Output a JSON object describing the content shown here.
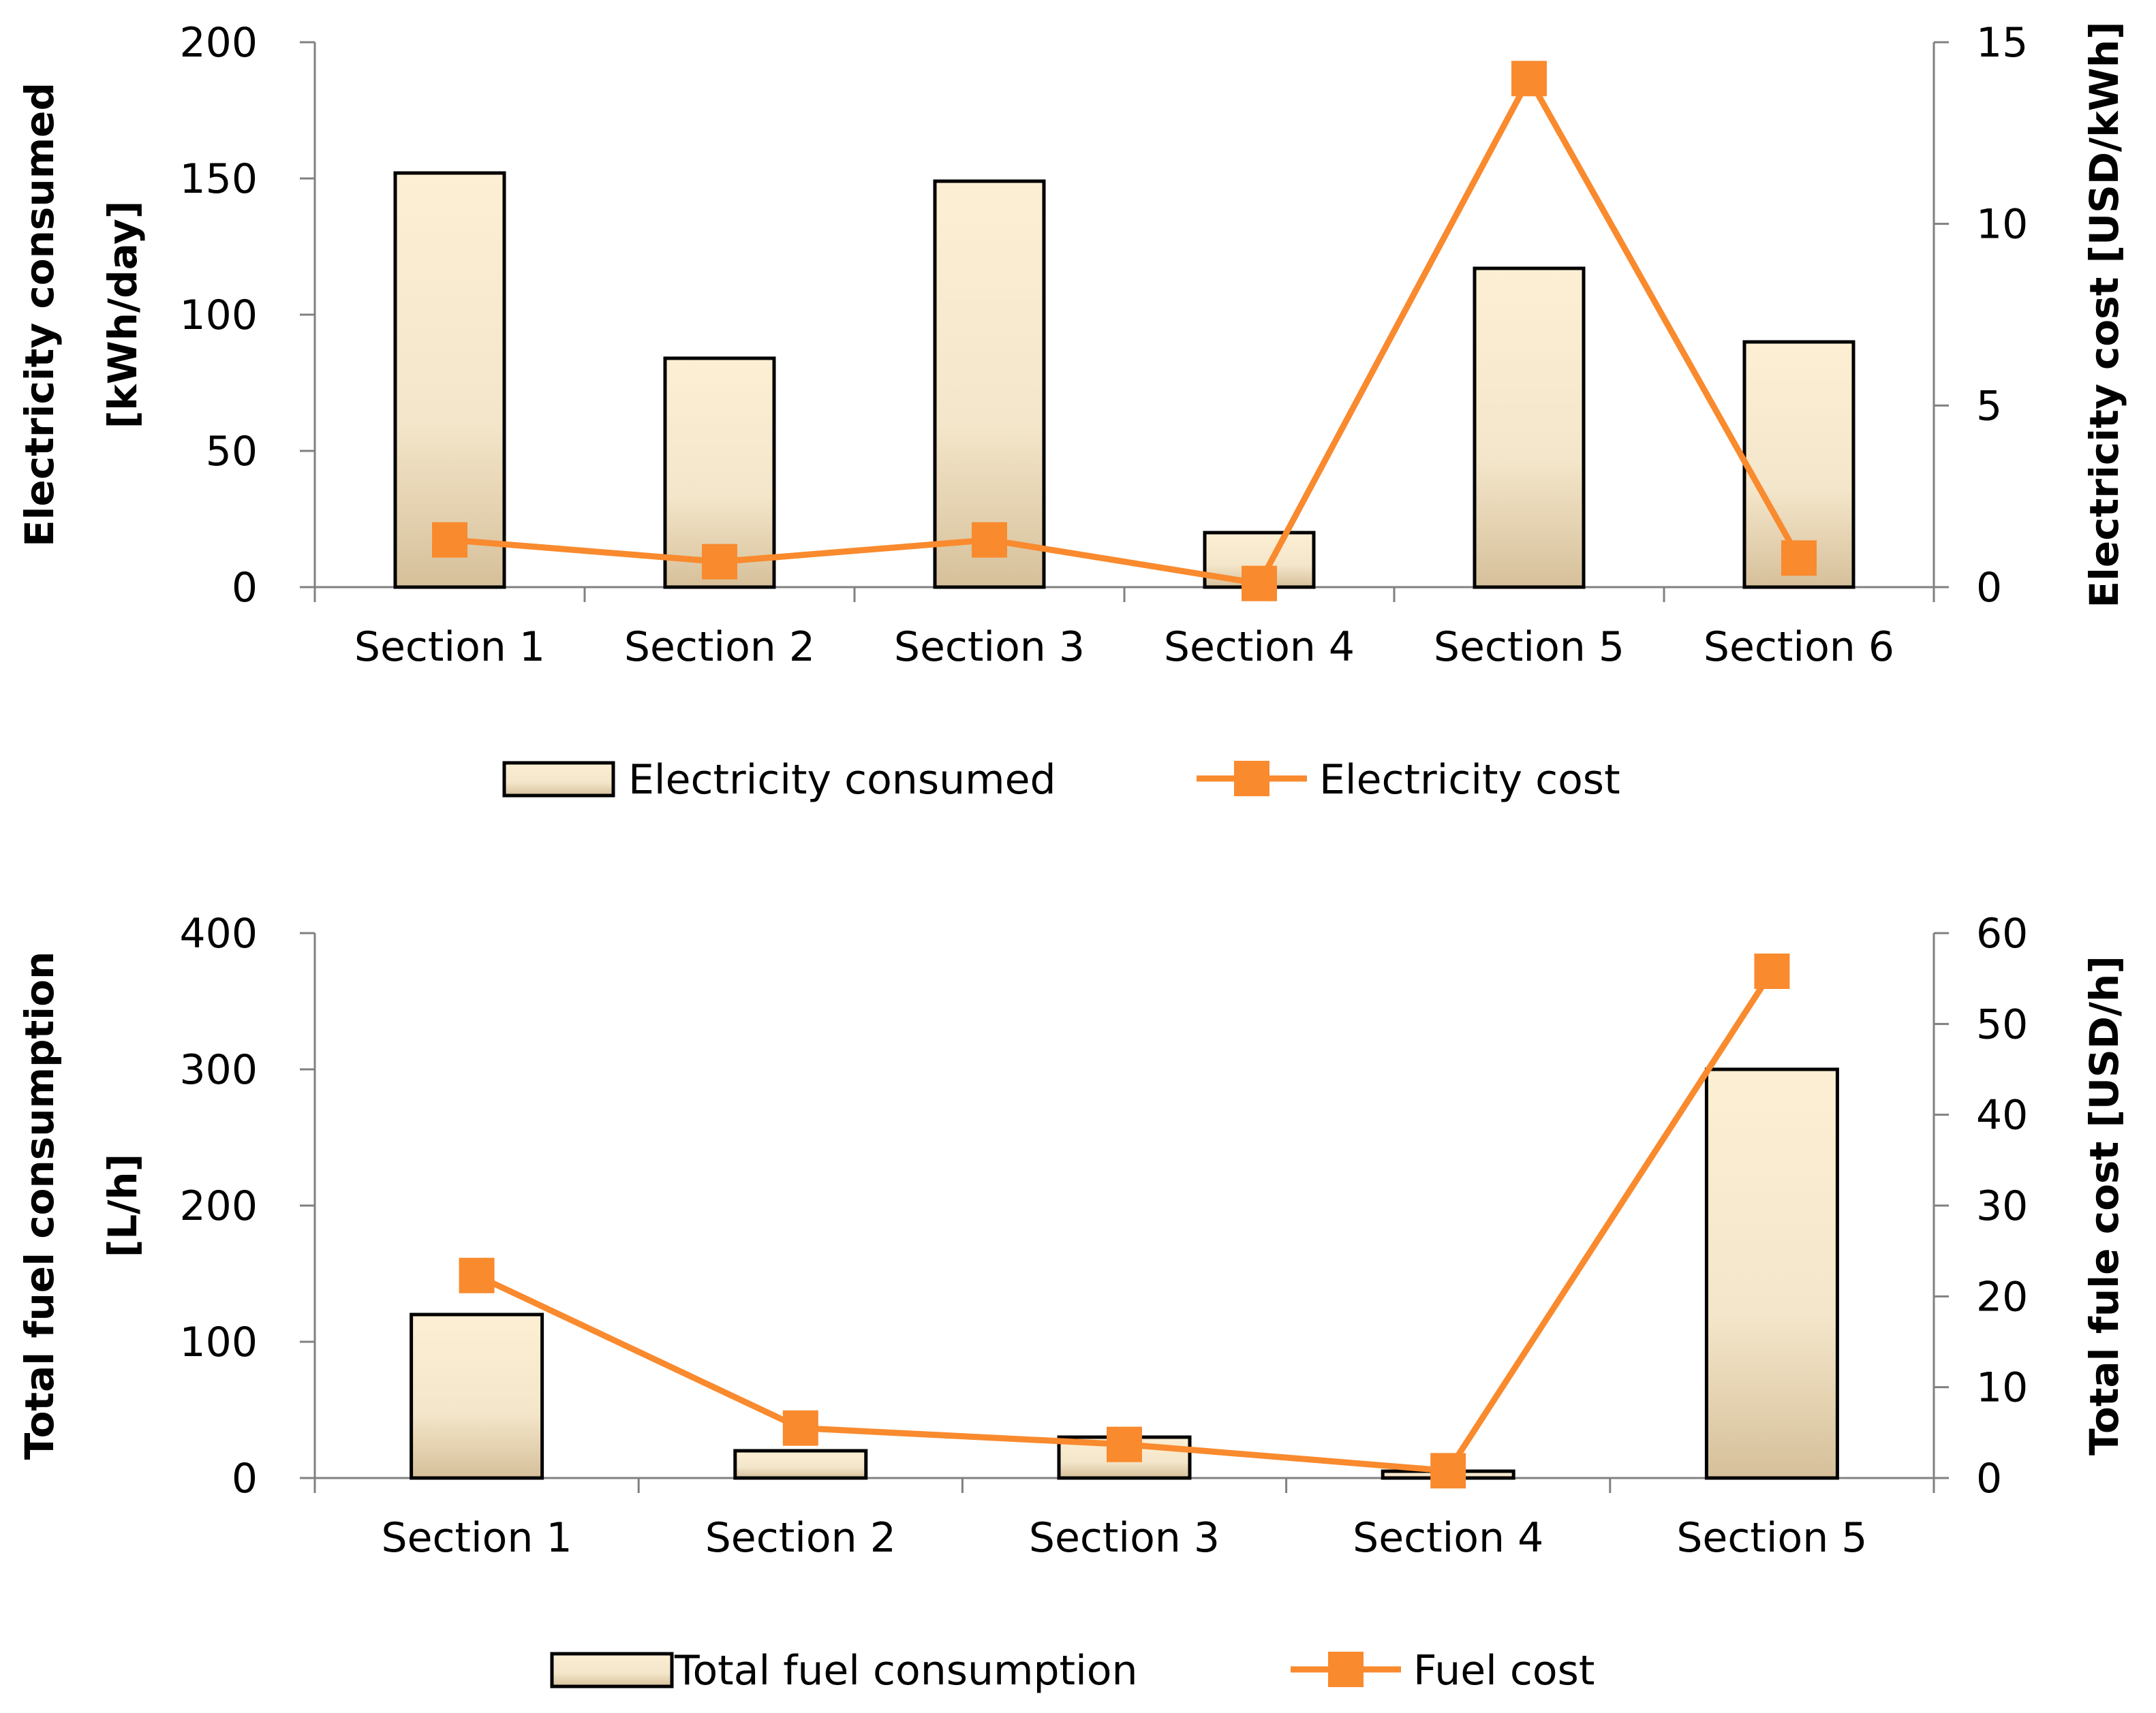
{
  "colors": {
    "bar_top": "#FDEFD3",
    "bar_bottom": "#D6C09A",
    "bar_stroke": "#000000",
    "line": "#F98A2E",
    "axis": "#808080"
  },
  "chart_data": [
    {
      "type": "bar+line",
      "categories": [
        "Section 1",
        "Section 2",
        "Section 3",
        "Section 4",
        "Section 5",
        "Section 6"
      ],
      "bar_series": {
        "name": "Electricity consumed",
        "values": [
          152,
          84,
          149,
          20,
          117,
          90
        ]
      },
      "line_series": {
        "name": "Electricity cost",
        "values": [
          1.3,
          0.7,
          1.3,
          0.1,
          14.0,
          0.8
        ]
      },
      "ylabel": [
        "Electricity consumed",
        "[kWh/day]"
      ],
      "y2label": "Electricity cost [USD/kWh]",
      "ylim": [
        0,
        200
      ],
      "y2lim": [
        0,
        15
      ],
      "yticks": [
        "0",
        "50",
        "100",
        "150",
        "200"
      ],
      "y2ticks": [
        "0",
        "5",
        "10",
        "15"
      ],
      "legend": [
        "Electricity consumed",
        "Electricity cost"
      ],
      "legend_position": "bottom",
      "grid": false
    },
    {
      "type": "bar+line",
      "categories": [
        "Section 1",
        "Section 2",
        "Section 3",
        "Section 4",
        "Section 5"
      ],
      "bar_series": {
        "name": "Total fuel consumption",
        "values": [
          120,
          20,
          30,
          5,
          300
        ]
      },
      "line_series": {
        "name": "Fuel cost",
        "values": [
          22.3,
          5.5,
          3.7,
          0.8,
          55.8
        ]
      },
      "ylabel": [
        "Total fuel consumption",
        "[L/h]"
      ],
      "y2label": "Total fule cost [USD/h]",
      "ylim": [
        0,
        400
      ],
      "y2lim": [
        0,
        60
      ],
      "yticks": [
        "0",
        "100",
        "200",
        "300",
        "400"
      ],
      "y2ticks": [
        "0",
        "10",
        "20",
        "30",
        "40",
        "50",
        "60"
      ],
      "legend": [
        "Total fuel consumption",
        "Fuel cost"
      ],
      "legend_position": "bottom",
      "grid": false
    }
  ]
}
